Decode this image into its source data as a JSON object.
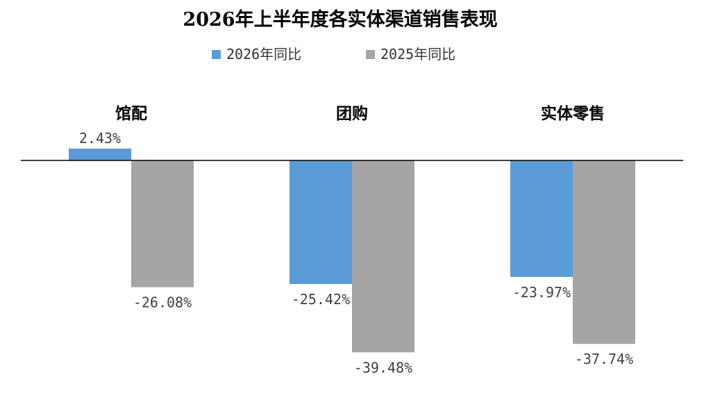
{
  "chart_data": {
    "type": "bar",
    "title": "2026年上半年度各实体渠道销售表现",
    "categories": [
      "馆配",
      "团购",
      "实体零售"
    ],
    "series": [
      {
        "name": "2026年同比",
        "values": [
          2.43,
          -25.42,
          -23.97
        ],
        "labels": [
          "2.43%",
          "-25.42%",
          "-23.97%"
        ],
        "color": "#5b9bd5"
      },
      {
        "name": "2025年同比",
        "values": [
          -26.08,
          -39.48,
          -37.74
        ],
        "labels": [
          "-26.08%",
          "-39.48%",
          "-37.74%"
        ],
        "color": "#a5a5a5"
      }
    ],
    "ylim": [
      -45,
      5
    ],
    "category_label_position": "top",
    "legend_position": "top",
    "grid": false,
    "xlabel": "",
    "ylabel": ""
  }
}
